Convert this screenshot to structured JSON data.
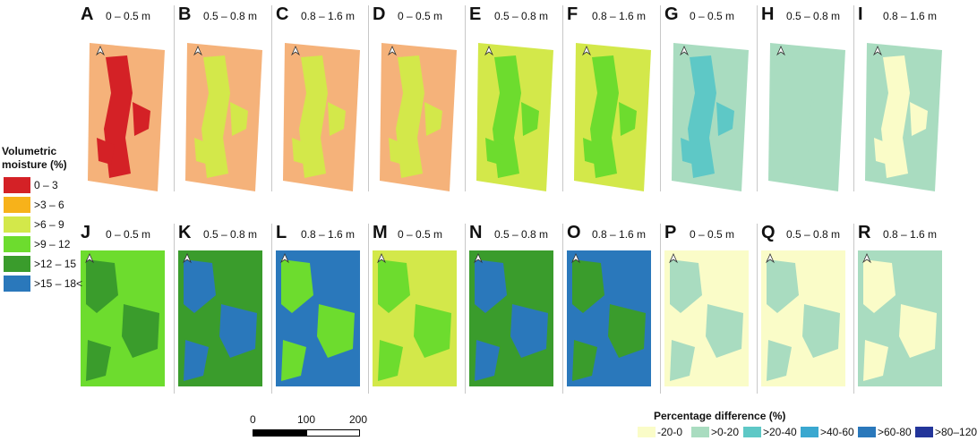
{
  "panels_top": [
    {
      "letter": "A",
      "depth": "0 – 0.5 m",
      "base": "#f5b27a",
      "patch": "#d42126"
    },
    {
      "letter": "B",
      "depth": "0.5 – 0.8 m",
      "base": "#f5b27a",
      "patch": "#d3e84a"
    },
    {
      "letter": "C",
      "depth": "0.8 – 1.6 m",
      "base": "#f5b27a",
      "patch": "#d3e84a"
    },
    {
      "letter": "D",
      "depth": "0 – 0.5 m",
      "base": "#f5b27a",
      "patch": "#d3e84a"
    },
    {
      "letter": "E",
      "depth": "0.5 – 0.8 m",
      "base": "#d3e84a",
      "patch": "#6ddc2e"
    },
    {
      "letter": "F",
      "depth": "0.8 – 1.6 m",
      "base": "#d3e84a",
      "patch": "#6ddc2e"
    },
    {
      "letter": "G",
      "depth": "0 – 0.5 m",
      "base": "#a9dcc0",
      "patch": "#5ec8c6"
    },
    {
      "letter": "H",
      "depth": "0.5 – 0.8 m",
      "base": "#a9dcc0",
      "patch": "#a9dcc0"
    },
    {
      "letter": "I",
      "depth": "0.8 – 1.6 m",
      "base": "#a9dcc0",
      "patch": "#fafcc8"
    }
  ],
  "panels_bottom": [
    {
      "letter": "J",
      "depth": "0 – 0.5 m",
      "base": "#6ddc2e",
      "patch": "#3a9c2c"
    },
    {
      "letter": "K",
      "depth": "0.5 – 0.8 m",
      "base": "#3a9c2c",
      "patch": "#2a78bb"
    },
    {
      "letter": "L",
      "depth": "0.8 – 1.6 m",
      "base": "#2a78bb",
      "patch": "#6ddc2e"
    },
    {
      "letter": "M",
      "depth": "0 – 0.5 m",
      "base": "#d3e84a",
      "patch": "#6ddc2e"
    },
    {
      "letter": "N",
      "depth": "0.5 – 0.8 m",
      "base": "#3a9c2c",
      "patch": "#2a78bb"
    },
    {
      "letter": "O",
      "depth": "0.8 – 1.6 m",
      "base": "#2a78bb",
      "patch": "#3a9c2c"
    },
    {
      "letter": "P",
      "depth": "0 – 0.5 m",
      "base": "#fafcc8",
      "patch": "#a9dcc0"
    },
    {
      "letter": "Q",
      "depth": "0.5 – 0.8 m",
      "base": "#fafcc8",
      "patch": "#a9dcc0"
    },
    {
      "letter": "R",
      "depth": "0.8 – 1.6 m",
      "base": "#a9dcc0",
      "patch": "#fafcc8"
    }
  ],
  "moisture_legend": {
    "title": "Volumetric moisture (%)",
    "items": [
      {
        "label": "0 – 3",
        "color": "#d42126"
      },
      {
        "label": ">3 – 6",
        "color": "#f7b21a"
      },
      {
        "label": ">6 – 9",
        "color": "#d3e84a"
      },
      {
        "label": ">9 – 12",
        "color": "#6ddc2e"
      },
      {
        "label": ">12 – 15",
        "color": "#3a9c2c"
      },
      {
        "label": ">15 – 18<",
        "color": "#2a78bb"
      }
    ]
  },
  "scale_bar": {
    "ticks": [
      "0",
      "100",
      "200 m"
    ]
  },
  "difference_legend": {
    "title": "Percentage difference (%)",
    "items": [
      {
        "label": "-20-0",
        "color": "#fafcc8"
      },
      {
        "label": ">0-20",
        "color": "#a9dcc0"
      },
      {
        "label": ">20-40",
        "color": "#5ec8c6"
      },
      {
        "label": ">40-60",
        "color": "#3aa8d0"
      },
      {
        "label": ">60-80",
        "color": "#2a78bb"
      },
      {
        "label": ">80–120",
        "color": "#23359a"
      }
    ]
  }
}
